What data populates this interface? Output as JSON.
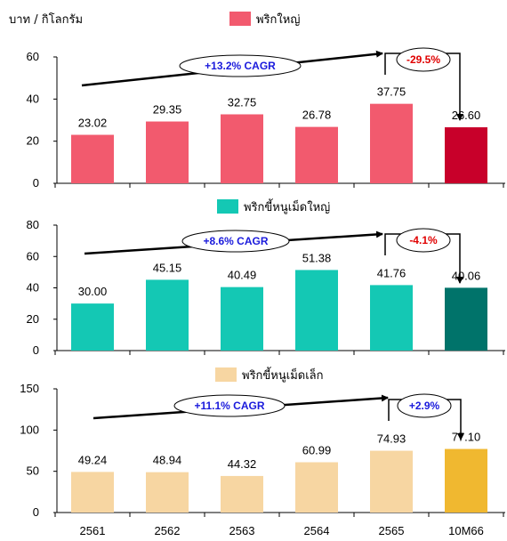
{
  "unit_label": "บาท / กิโลกรัม",
  "chart_data": [
    {
      "type": "bar",
      "series_name": "พริกใหญ่",
      "legend_color": "#f25a6e",
      "bar_color": "#f25a6e",
      "highlight_color": "#c8002a",
      "categories": [
        "2561",
        "2562",
        "2563",
        "2564",
        "2565",
        "10M66"
      ],
      "values": [
        23.02,
        29.35,
        32.75,
        26.78,
        37.75,
        26.6
      ],
      "value_labels": [
        "23.02",
        "29.35",
        "32.75",
        "26.78",
        "37.75",
        "26.60"
      ],
      "ylim": [
        0,
        60
      ],
      "yticks": [
        "0",
        "20",
        "40",
        "60"
      ],
      "cagr_label": "+13.2% CAGR",
      "change_label": "-29.5%",
      "change_sign": "negative"
    },
    {
      "type": "bar",
      "series_name": "พริกขี้หนูเม็ดใหญ่",
      "legend_color": "#14c8b4",
      "bar_color": "#14c8b4",
      "highlight_color": "#00736a",
      "categories": [
        "2561",
        "2562",
        "2563",
        "2564",
        "2565",
        "10M66"
      ],
      "values": [
        30.0,
        45.15,
        40.49,
        51.38,
        41.76,
        40.06
      ],
      "value_labels": [
        "30.00",
        "45.15",
        "40.49",
        "51.38",
        "41.76",
        "40.06"
      ],
      "ylim": [
        0,
        80
      ],
      "yticks": [
        "0",
        "20",
        "40",
        "60",
        "80"
      ],
      "cagr_label": "+8.6% CAGR",
      "change_label": "-4.1%",
      "change_sign": "negative"
    },
    {
      "type": "bar",
      "series_name": "พริกขี้หนูเม็ดเล็ก",
      "legend_color": "#f7d6a2",
      "bar_color": "#f7d6a2",
      "highlight_color": "#f0b830",
      "categories": [
        "2561",
        "2562",
        "2563",
        "2564",
        "2565",
        "10M66"
      ],
      "values": [
        49.24,
        48.94,
        44.32,
        60.99,
        74.93,
        77.1
      ],
      "value_labels": [
        "49.24",
        "48.94",
        "44.32",
        "60.99",
        "74.93",
        "77.10"
      ],
      "ylim": [
        0,
        150
      ],
      "yticks": [
        "0",
        "50",
        "100",
        "150"
      ],
      "cagr_label": "+11.1% CAGR",
      "change_label": "+2.9%",
      "change_sign": "positive"
    }
  ]
}
